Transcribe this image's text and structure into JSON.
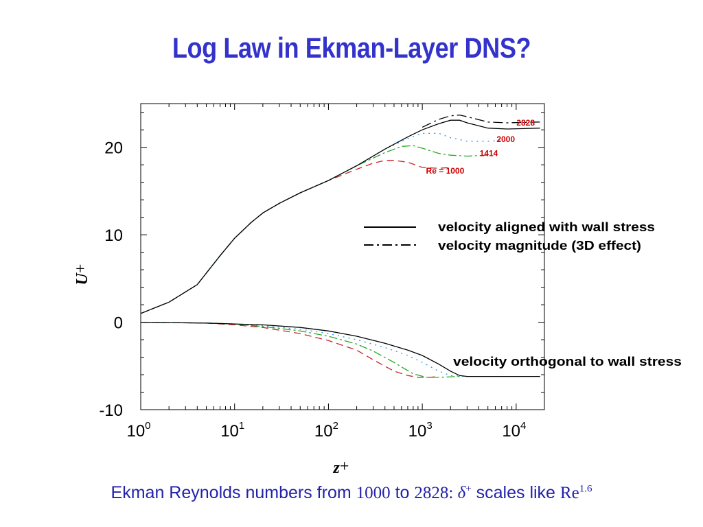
{
  "title": "Log Law in Ekman-Layer DNS?",
  "footer": {
    "part1": "Ekman Reynolds numbers from ",
    "re_low": "1000",
    "to": " to ",
    "re_high": "2828",
    "colon": ": ",
    "delta": "δ",
    "plus": "+",
    "scales": " scales like ",
    "re": "Re",
    "exponent": "1.6"
  },
  "colors": {
    "title": "#3333cc",
    "footer": "#2222aa",
    "re_labels": "#cc0000",
    "re1000": "#cc2222",
    "re1414": "#22aa22",
    "re2000": "#2299ee",
    "re2828": "#000000"
  },
  "chart_data": {
    "type": "line",
    "xscale": "log",
    "xlim": [
      1,
      20000
    ],
    "ylim": [
      -10,
      25
    ],
    "xlabel_text": "z",
    "xlabel_sup": "+",
    "ylabel_text": "U",
    "ylabel_sup": "+",
    "x_ticks": [
      {
        "x": 1,
        "base": "10",
        "exp": "0"
      },
      {
        "x": 10,
        "base": "10",
        "exp": "1"
      },
      {
        "x": 100,
        "base": "10",
        "exp": "2"
      },
      {
        "x": 1000,
        "base": "10",
        "exp": "3"
      },
      {
        "x": 10000,
        "base": "10",
        "exp": "4"
      }
    ],
    "y_ticks": [
      {
        "y": 20,
        "label": "20"
      },
      {
        "y": 10,
        "label": "10"
      },
      {
        "y": 0,
        "label": "0"
      },
      {
        "y": -10,
        "label": "-10"
      }
    ],
    "grid": false,
    "legend_entries": [
      {
        "style": "solid",
        "label": "velocity aligned with wall stress"
      },
      {
        "style": "dashdot",
        "label": "velocity magnitude (3D effect)"
      }
    ],
    "annotations": {
      "orthogonal": "velocity orthogonal to wall stress"
    },
    "series": [
      {
        "name": "Re = 1000",
        "label_x": 2800,
        "label_y": 17.0,
        "color_key": "re1000",
        "dash": "10,6",
        "aligned": [
          [
            1,
            1
          ],
          [
            2,
            2.3
          ],
          [
            4,
            4.3
          ],
          [
            7,
            7.6
          ],
          [
            10,
            9.6
          ],
          [
            15,
            11.4
          ],
          [
            20,
            12.5
          ],
          [
            30,
            13.6
          ],
          [
            50,
            14.8
          ],
          [
            100,
            16.2
          ],
          [
            200,
            17.5
          ],
          [
            300,
            18.2
          ],
          [
            400,
            18.5
          ],
          [
            500,
            18.5
          ],
          [
            700,
            18.3
          ],
          [
            1000,
            17.7
          ],
          [
            1500,
            17.6
          ],
          [
            2000,
            17.7
          ]
        ],
        "orthogonal": [
          [
            1,
            0
          ],
          [
            5,
            -0.1
          ],
          [
            10,
            -0.3
          ],
          [
            20,
            -0.6
          ],
          [
            50,
            -1.3
          ],
          [
            100,
            -2.1
          ],
          [
            200,
            -3.2
          ],
          [
            300,
            -4.3
          ],
          [
            500,
            -5.6
          ],
          [
            700,
            -6.1
          ],
          [
            900,
            -6.3
          ],
          [
            1200,
            -6.3
          ],
          [
            1500,
            -6.2
          ]
        ]
      },
      {
        "name": "1414",
        "label_x": 6400,
        "label_y": 19.0,
        "color_key": "re1414",
        "dash": "12,4,3,4",
        "aligned": [
          [
            1,
            1
          ],
          [
            2,
            2.3
          ],
          [
            4,
            4.3
          ],
          [
            7,
            7.6
          ],
          [
            10,
            9.6
          ],
          [
            15,
            11.4
          ],
          [
            20,
            12.5
          ],
          [
            30,
            13.6
          ],
          [
            50,
            14.8
          ],
          [
            100,
            16.2
          ],
          [
            200,
            17.9
          ],
          [
            400,
            19.4
          ],
          [
            600,
            20.1
          ],
          [
            800,
            20.2
          ],
          [
            1000,
            19.9
          ],
          [
            1500,
            19.3
          ],
          [
            2000,
            19.1
          ],
          [
            3000,
            19.0
          ],
          [
            5000,
            19.1
          ]
        ],
        "orthogonal": [
          [
            1,
            0
          ],
          [
            5,
            -0.1
          ],
          [
            10,
            -0.2
          ],
          [
            20,
            -0.5
          ],
          [
            50,
            -1.0
          ],
          [
            100,
            -1.6
          ],
          [
            200,
            -2.5
          ],
          [
            300,
            -3.3
          ],
          [
            500,
            -4.6
          ],
          [
            800,
            -5.9
          ],
          [
            1100,
            -6.3
          ],
          [
            1500,
            -6.3
          ],
          [
            2500,
            -6.2
          ]
        ]
      },
      {
        "name": "2000",
        "label_x": 9700,
        "label_y": 20.6,
        "color_key": "re2000",
        "dash": "2,6",
        "aligned": [
          [
            1,
            1
          ],
          [
            2,
            2.3
          ],
          [
            4,
            4.3
          ],
          [
            7,
            7.6
          ],
          [
            10,
            9.6
          ],
          [
            15,
            11.4
          ],
          [
            20,
            12.5
          ],
          [
            30,
            13.6
          ],
          [
            50,
            14.8
          ],
          [
            100,
            16.2
          ],
          [
            200,
            17.9
          ],
          [
            400,
            19.8
          ],
          [
            700,
            21.0
          ],
          [
            1000,
            21.6
          ],
          [
            1500,
            21.6
          ],
          [
            2000,
            21.1
          ],
          [
            3000,
            20.7
          ],
          [
            5000,
            20.7
          ],
          [
            8000,
            20.8
          ]
        ],
        "orthogonal": [
          [
            1,
            0
          ],
          [
            5,
            -0.1
          ],
          [
            10,
            -0.2
          ],
          [
            20,
            -0.4
          ],
          [
            50,
            -0.8
          ],
          [
            100,
            -1.3
          ],
          [
            200,
            -2.0
          ],
          [
            400,
            -2.9
          ],
          [
            700,
            -3.8
          ],
          [
            1000,
            -4.6
          ],
          [
            1500,
            -5.6
          ],
          [
            2000,
            -6.1
          ],
          [
            3000,
            -6.2
          ]
        ]
      },
      {
        "name": "2828",
        "label_x": 15800,
        "label_y": 22.5,
        "color_key": "re2828",
        "dash": "",
        "aligned": [
          [
            1,
            1
          ],
          [
            2,
            2.3
          ],
          [
            4,
            4.3
          ],
          [
            7,
            7.6
          ],
          [
            10,
            9.6
          ],
          [
            15,
            11.4
          ],
          [
            20,
            12.5
          ],
          [
            30,
            13.6
          ],
          [
            50,
            14.8
          ],
          [
            100,
            16.2
          ],
          [
            200,
            17.9
          ],
          [
            400,
            19.8
          ],
          [
            700,
            21.2
          ],
          [
            1000,
            22.0
          ],
          [
            1500,
            22.7
          ],
          [
            2000,
            23.1
          ],
          [
            2500,
            23.1
          ],
          [
            3000,
            22.8
          ],
          [
            5000,
            22.2
          ],
          [
            8000,
            22.1
          ],
          [
            18000,
            22.2
          ]
        ],
        "magnitude": [
          [
            1000,
            22.3
          ],
          [
            1500,
            23.2
          ],
          [
            2000,
            23.6
          ],
          [
            2500,
            23.7
          ],
          [
            3000,
            23.5
          ],
          [
            5000,
            22.9
          ],
          [
            8000,
            22.8
          ],
          [
            18000,
            22.9
          ]
        ],
        "orthogonal": [
          [
            1,
            0
          ],
          [
            5,
            -0.1
          ],
          [
            10,
            -0.2
          ],
          [
            20,
            -0.3
          ],
          [
            50,
            -0.6
          ],
          [
            100,
            -1.0
          ],
          [
            200,
            -1.6
          ],
          [
            400,
            -2.4
          ],
          [
            700,
            -3.2
          ],
          [
            1000,
            -3.8
          ],
          [
            1500,
            -4.8
          ],
          [
            2000,
            -5.6
          ],
          [
            2500,
            -6.1
          ],
          [
            3000,
            -6.2
          ],
          [
            5000,
            -6.2
          ],
          [
            18000,
            -6.2
          ]
        ]
      }
    ]
  }
}
